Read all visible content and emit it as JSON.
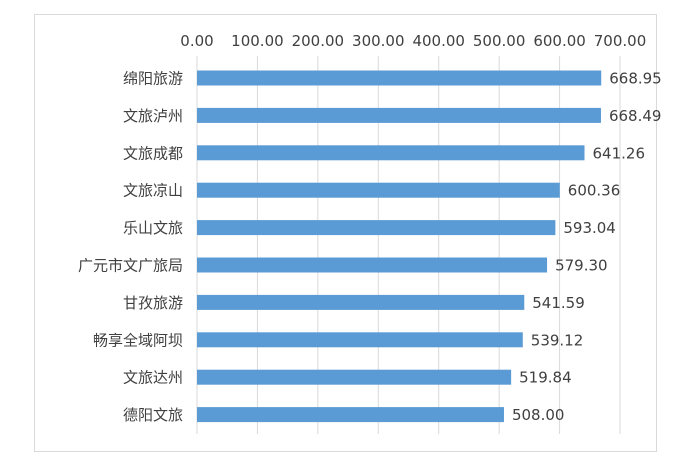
{
  "chart_data": {
    "type": "bar",
    "orientation": "horizontal",
    "title": "",
    "xlabel": "",
    "ylabel": "",
    "xlim": [
      0,
      700
    ],
    "tick_step": 100,
    "tick_labels": [
      "0.00",
      "100.00",
      "200.00",
      "300.00",
      "400.00",
      "500.00",
      "600.00",
      "700.00"
    ],
    "x_axis_position": "top",
    "grid": true,
    "legend": "none",
    "categories": [
      "绵阳旅游",
      "文旅泸州",
      "文旅成都",
      "文旅凉山",
      "乐山文旅",
      "广元市文广旅局",
      "甘孜旅游",
      "畅享全域阿坝",
      "文旅达州",
      "德阳文旅"
    ],
    "values": [
      668.95,
      668.49,
      641.26,
      600.36,
      593.04,
      579.3,
      541.59,
      539.12,
      519.84,
      508.0
    ],
    "value_labels": [
      "668.95",
      "668.49",
      "641.26",
      "600.36",
      "593.04",
      "579.30",
      "541.59",
      "539.12",
      "519.84",
      "508.00"
    ],
    "bar_color": "#5b9bd5",
    "gridline_color": "#d9d9d9"
  }
}
